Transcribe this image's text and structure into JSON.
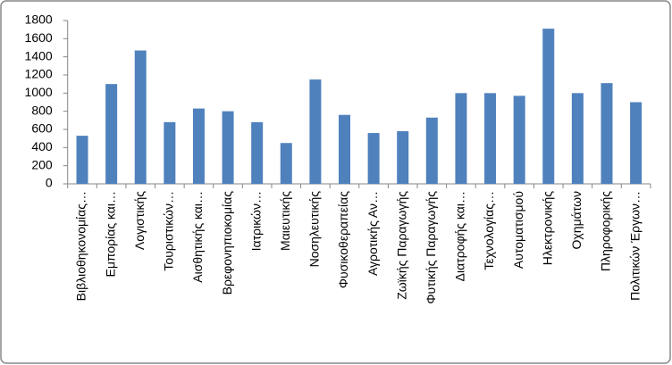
{
  "chart_data": {
    "type": "bar",
    "categories": [
      "Βιβλιοθηκονομίας…",
      "Εμπορίας και…",
      "Λογιστικής",
      "Τουριστικών…",
      "Αισθητικής και…",
      "Βρεφονηπιοκομίας",
      "Ιατρικών…",
      "Μαιευτικής",
      "Νοσηλευτικής",
      "Φυσικοθεραπείας",
      "Αγροτικής Αν…",
      "Ζωϊκής Παραγωγής",
      "Φυτικής Παραγωγής",
      "Διατροφής και…",
      "Τεχνολογίας…",
      "Αυτοματισμού",
      "Ηλεκτρονικής",
      "Οχημάτων",
      "Πληροφορικής",
      "Πολιτικών Έργων…"
    ],
    "values": [
      530,
      1100,
      1470,
      680,
      830,
      800,
      680,
      450,
      1150,
      760,
      560,
      580,
      730,
      1000,
      1000,
      970,
      1710,
      1000,
      1110,
      900
    ],
    "color": "#4f81bd",
    "ylim": [
      0,
      1800
    ],
    "yticks": [
      0,
      200,
      400,
      600,
      800,
      1000,
      1200,
      1400,
      1600,
      1800
    ],
    "grid": false
  }
}
